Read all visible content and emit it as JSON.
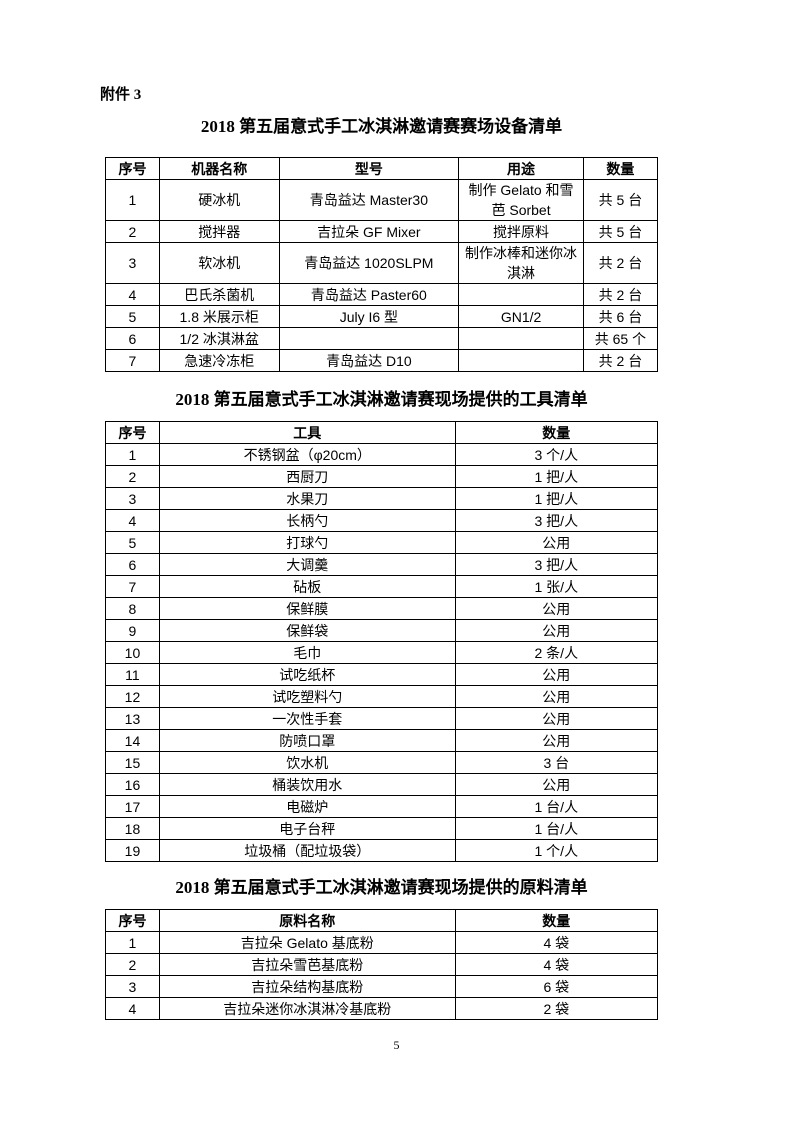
{
  "page": {
    "attachment_label": "附件 3",
    "page_number": "5"
  },
  "tables": [
    {
      "title": "2018 第五届意式手工冰淇淋邀请赛赛场设备清单",
      "headers": [
        "序号",
        "机器名称",
        "型号",
        "用途",
        "数量"
      ],
      "rows": [
        [
          "1",
          "硬冰机",
          "青岛益达 Master30",
          "制作 Gelato 和雪芭 Sorbet",
          "共 5 台"
        ],
        [
          "2",
          "搅拌器",
          "吉拉朵 GF Mixer",
          "搅拌原料",
          "共 5 台"
        ],
        [
          "3",
          "软冰机",
          "青岛益达 1020SLPM",
          "制作冰棒和迷你冰淇淋",
          "共 2 台"
        ],
        [
          "4",
          "巴氏杀菌机",
          "青岛益达 Paster60",
          "",
          "共 2 台"
        ],
        [
          "5",
          "1.8 米展示柜",
          "July I6 型",
          "GN1/2",
          "共 6 台"
        ],
        [
          "6",
          "1/2 冰淇淋盆",
          "",
          "",
          "共 65 个"
        ],
        [
          "7",
          "急速冷冻柜",
          "青岛益达 D10",
          "",
          "共 2 台"
        ]
      ]
    },
    {
      "title": "2018 第五届意式手工冰淇淋邀请赛现场提供的工具清单",
      "headers": [
        "序号",
        "工具",
        "数量"
      ],
      "rows": [
        [
          "1",
          "不锈钢盆（φ20cm）",
          "3 个/人"
        ],
        [
          "2",
          "西厨刀",
          "1 把/人"
        ],
        [
          "3",
          "水果刀",
          "1 把/人"
        ],
        [
          "4",
          "长柄勺",
          "3 把/人"
        ],
        [
          "5",
          "打球勺",
          "公用"
        ],
        [
          "6",
          "大调羹",
          "3 把/人"
        ],
        [
          "7",
          "砧板",
          "1 张/人"
        ],
        [
          "8",
          "保鲜膜",
          "公用"
        ],
        [
          "9",
          "保鲜袋",
          "公用"
        ],
        [
          "10",
          "毛巾",
          "2 条/人"
        ],
        [
          "11",
          "试吃纸杯",
          "公用"
        ],
        [
          "12",
          "试吃塑料勺",
          "公用"
        ],
        [
          "13",
          "一次性手套",
          "公用"
        ],
        [
          "14",
          "防喷口罩",
          "公用"
        ],
        [
          "15",
          "饮水机",
          "3 台"
        ],
        [
          "16",
          "桶装饮用水",
          "公用"
        ],
        [
          "17",
          "电磁炉",
          "1 台/人"
        ],
        [
          "18",
          "电子台秤",
          "1 台/人"
        ],
        [
          "19",
          "垃圾桶（配垃圾袋）",
          "1 个/人"
        ]
      ]
    },
    {
      "title": "2018 第五届意式手工冰淇淋邀请赛现场提供的原料清单",
      "headers": [
        "序号",
        "原料名称",
        "数量"
      ],
      "rows": [
        [
          "1",
          "吉拉朵 Gelato 基底粉",
          "4 袋"
        ],
        [
          "2",
          "吉拉朵雪芭基底粉",
          "4 袋"
        ],
        [
          "3",
          "吉拉朵结构基底粉",
          "6 袋"
        ],
        [
          "4",
          "吉拉朵迷你冰淇淋冷基底粉",
          "2 袋"
        ]
      ]
    }
  ]
}
